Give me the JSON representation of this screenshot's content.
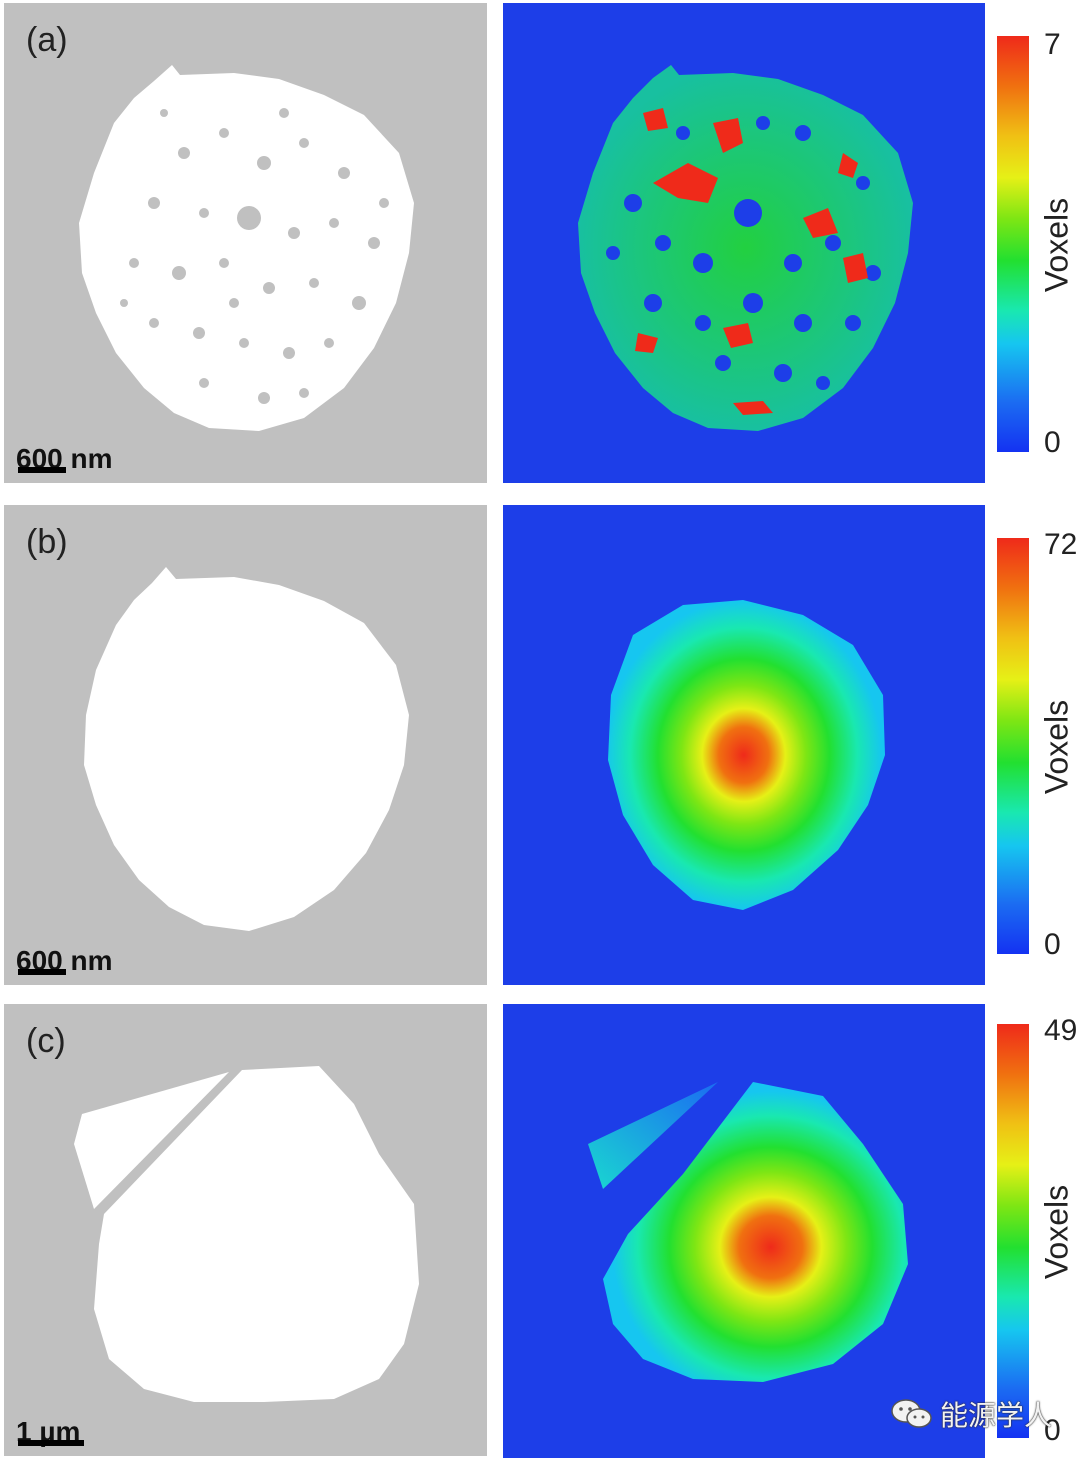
{
  "panels": [
    {
      "label": "(a)",
      "scalebar": "600 nm",
      "colorbar": {
        "title": "Voxels",
        "max": "7",
        "min": "0"
      }
    },
    {
      "label": "(b)",
      "scalebar": "600 nm",
      "colorbar": {
        "title": "Voxels",
        "max": "72",
        "min": "0"
      }
    },
    {
      "label": "(c)",
      "scalebar": "1 µm",
      "colorbar": {
        "title": "Voxels",
        "max": "49",
        "min": "0"
      }
    }
  ],
  "watermark": {
    "text": "能源学人",
    "icon": "wechat-icon"
  },
  "colors": {
    "background_gray": "#c0c0c0",
    "particle": "#ffffff",
    "map_low": "#1d3ee8",
    "map_high": "#ef2a1a"
  }
}
